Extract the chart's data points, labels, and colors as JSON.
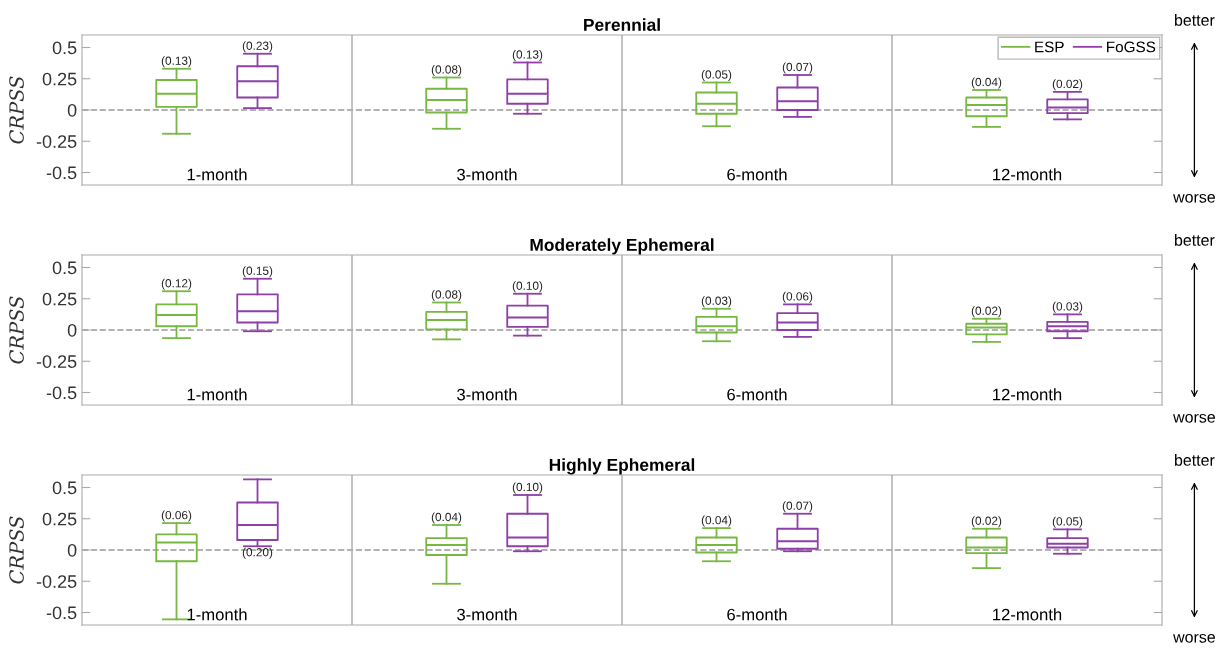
{
  "chart_data": [
    {
      "type": "box",
      "title": "Perennial",
      "ylabel": "CRPSS",
      "categories": [
        "1-month",
        "3-month",
        "6-month",
        "12-month"
      ],
      "ylim": [
        -0.6,
        0.6
      ],
      "yticks": [
        -0.5,
        -0.25,
        0,
        0.25,
        0.5
      ],
      "legend": "top right",
      "ref_lines": [
        {
          "axis": "y",
          "value": 0,
          "color": "#999999",
          "line_style": "dashed"
        }
      ],
      "annotations": [
        "better",
        "worse"
      ],
      "series": [
        {
          "name": "ESP",
          "color": "#77b843",
          "value_labels": [
            "(0.13)",
            "(0.08)",
            "(0.05)",
            "(0.04)"
          ],
          "boxes": [
            {
              "low": -0.19,
              "q1": 0.025,
              "median": 0.13,
              "q3": 0.24,
              "high": 0.33
            },
            {
              "low": -0.15,
              "q1": -0.02,
              "median": 0.08,
              "q3": 0.17,
              "high": 0.26
            },
            {
              "low": -0.13,
              "q1": -0.03,
              "median": 0.05,
              "q3": 0.14,
              "high": 0.22
            },
            {
              "low": -0.135,
              "q1": -0.05,
              "median": 0.04,
              "q3": 0.1,
              "high": 0.16
            }
          ]
        },
        {
          "name": "FoGSS",
          "color": "#8e3fa8",
          "value_labels": [
            "(0.23)",
            "(0.13)",
            "(0.07)",
            "(0.02)"
          ],
          "boxes": [
            {
              "low": 0.015,
              "q1": 0.1,
              "median": 0.23,
              "q3": 0.35,
              "high": 0.45
            },
            {
              "low": -0.03,
              "q1": 0.05,
              "median": 0.13,
              "q3": 0.245,
              "high": 0.38
            },
            {
              "low": -0.055,
              "q1": 0,
              "median": 0.07,
              "q3": 0.18,
              "high": 0.28
            },
            {
              "low": -0.075,
              "q1": -0.025,
              "median": 0.02,
              "q3": 0.085,
              "high": 0.145
            }
          ]
        }
      ]
    },
    {
      "type": "box",
      "title": "Moderately Ephemeral",
      "ylabel": "CRPSS",
      "categories": [
        "1-month",
        "3-month",
        "6-month",
        "12-month"
      ],
      "ylim": [
        -0.6,
        0.6
      ],
      "yticks": [
        -0.5,
        -0.25,
        0,
        0.25,
        0.5
      ],
      "ref_lines": [
        {
          "axis": "y",
          "value": 0,
          "color": "#999999",
          "line_style": "dashed"
        }
      ],
      "annotations": [
        "better",
        "worse"
      ],
      "series": [
        {
          "color": "#77b843",
          "value_labels": [
            "(0.12)",
            "(0.08)",
            "(0.03)",
            "(0.02)"
          ],
          "boxes": [
            {
              "low": -0.065,
              "q1": 0.03,
              "median": 0.12,
              "q3": 0.205,
              "high": 0.31
            },
            {
              "low": -0.075,
              "q1": 0.005,
              "median": 0.08,
              "q3": 0.145,
              "high": 0.22
            },
            {
              "low": -0.09,
              "q1": -0.02,
              "median": 0.03,
              "q3": 0.105,
              "high": 0.17
            },
            {
              "low": -0.095,
              "q1": -0.035,
              "median": 0.02,
              "q3": 0.05,
              "high": 0.09
            }
          ]
        },
        {
          "color": "#8e3fa8",
          "value_labels": [
            "(0.15)",
            "(0.10)",
            "(0.06)",
            "(0.03)"
          ],
          "boxes": [
            {
              "low": -0.01,
              "q1": 0.06,
              "median": 0.15,
              "q3": 0.285,
              "high": 0.41
            },
            {
              "low": -0.045,
              "q1": 0.025,
              "median": 0.1,
              "q3": 0.195,
              "high": 0.29
            },
            {
              "low": -0.055,
              "q1": 0,
              "median": 0.06,
              "q3": 0.135,
              "high": 0.205
            },
            {
              "low": -0.065,
              "q1": -0.01,
              "median": 0.03,
              "q3": 0.065,
              "high": 0.125
            }
          ]
        }
      ]
    },
    {
      "type": "box",
      "title": "Highly Ephemeral",
      "ylabel": "CRPSS",
      "categories": [
        "1-month",
        "3-month",
        "6-month",
        "12-month"
      ],
      "ylim": [
        -0.6,
        0.6
      ],
      "yticks": [
        -0.5,
        -0.25,
        0,
        0.25,
        0.5
      ],
      "ref_lines": [
        {
          "axis": "y",
          "value": 0,
          "color": "#999999",
          "line_style": "dashed"
        }
      ],
      "annotations": [
        "better",
        "worse"
      ],
      "series": [
        {
          "color": "#77b843",
          "value_labels": [
            "(0.06)",
            "(0.04)",
            "(0.04)",
            "(0.02)"
          ],
          "boxes": [
            {
              "low": -0.555,
              "q1": -0.09,
              "median": 0.06,
              "q3": 0.125,
              "high": 0.215
            },
            {
              "low": -0.27,
              "q1": -0.04,
              "median": 0.04,
              "q3": 0.095,
              "high": 0.2
            },
            {
              "low": -0.09,
              "q1": -0.02,
              "median": 0.04,
              "q3": 0.1,
              "high": 0.175
            },
            {
              "low": -0.145,
              "q1": -0.025,
              "median": 0.02,
              "q3": 0.1,
              "high": 0.17
            }
          ]
        },
        {
          "color": "#8e3fa8",
          "value_labels": [
            "(0.20)",
            "(0.10)",
            "(0.07)",
            "(0.05)"
          ],
          "boxes": [
            {
              "low": 0.03,
              "q1": 0.08,
              "median": 0.2,
              "q3": 0.38,
              "high": 0.565
            },
            {
              "low": -0.01,
              "q1": 0.03,
              "median": 0.1,
              "q3": 0.29,
              "high": 0.44
            },
            {
              "low": -0.01,
              "q1": 0.01,
              "median": 0.07,
              "q3": 0.17,
              "high": 0.29
            },
            {
              "low": -0.03,
              "q1": 0.02,
              "median": 0.05,
              "q3": 0.095,
              "high": 0.165
            }
          ]
        }
      ]
    }
  ]
}
